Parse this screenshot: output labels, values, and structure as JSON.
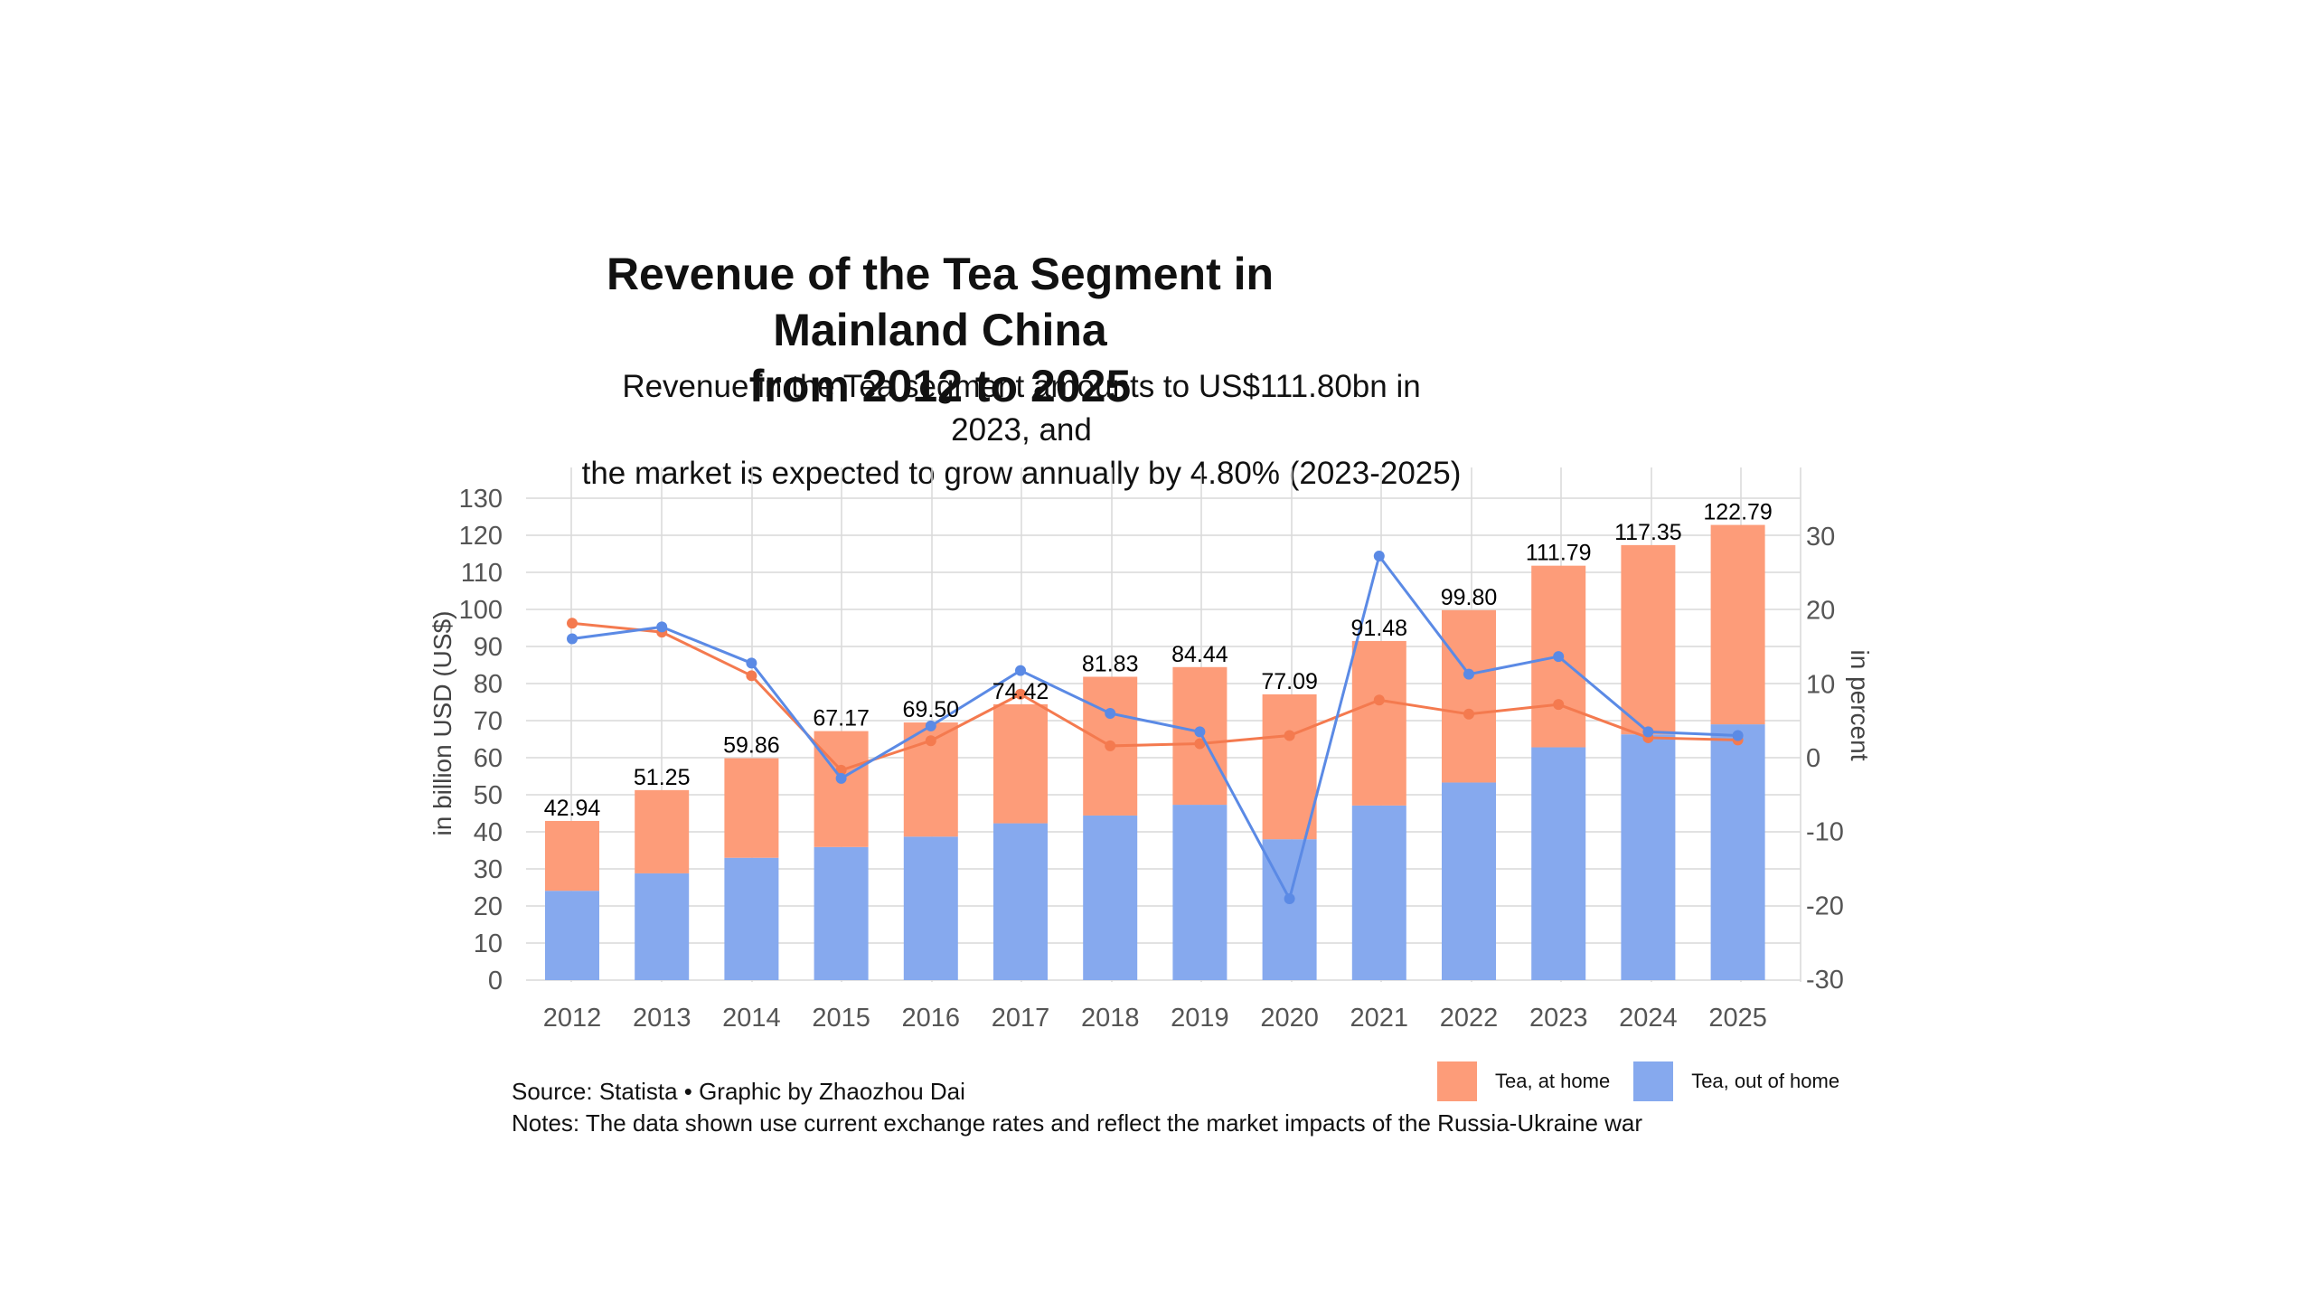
{
  "title_lines": [
    "Revenue of the Tea Segment in Mainland China",
    "from 2012 to 2025"
  ],
  "subtitle_lines": [
    "Revenue in the Tea segment amounts to US$111.80bn in 2023, and",
    "the market is expected to grow annually by 4.80% (2023-2025)"
  ],
  "source": "Source: Statista • Graphic by Zhaozhou Dai",
  "notes": "Notes: The data shown use current exchange rates and reflect the market impacts of the Russia-Ukraine war",
  "colors": {
    "at_home": "#fd9c79",
    "out_of_home": "#86a9ee",
    "at_home_line": "#f47a4f",
    "out_of_home_line": "#5b8ae5",
    "grid": "#d9d9d9"
  },
  "chart_data": {
    "type": "bar",
    "stacked": true,
    "categories": [
      "2012",
      "2013",
      "2014",
      "2015",
      "2016",
      "2017",
      "2018",
      "2019",
      "2020",
      "2021",
      "2022",
      "2023",
      "2024",
      "2025"
    ],
    "ylabel": "in billion USD (US$)",
    "y2label": "in percent",
    "ylim": [
      0,
      130
    ],
    "yticks": [
      0,
      10,
      20,
      30,
      40,
      50,
      60,
      70,
      80,
      90,
      100,
      110,
      120,
      130
    ],
    "y2lim": [
      -30,
      30
    ],
    "y2ticks": [
      30,
      20,
      10,
      0,
      -10,
      -20,
      -30
    ],
    "totals": [
      "42.94",
      "51.25",
      "59.86",
      "67.17",
      "69.50",
      "74.42",
      "81.83",
      "84.44",
      "77.09",
      "91.48",
      "99.80",
      "111.79",
      "117.35",
      "122.79"
    ],
    "series": [
      {
        "name": "Tea, out of home",
        "kind": "bar",
        "values": [
          24.1,
          28.8,
          33.0,
          35.9,
          38.7,
          42.3,
          44.4,
          47.3,
          38.0,
          47.1,
          53.3,
          62.8,
          66.3,
          69.0
        ]
      },
      {
        "name": "Tea, at home",
        "kind": "bar",
        "values": [
          18.84,
          22.45,
          26.86,
          31.27,
          30.8,
          32.12,
          37.43,
          37.14,
          39.09,
          44.38,
          46.5,
          48.99,
          51.05,
          53.79
        ]
      },
      {
        "name": "Tea, at home",
        "kind": "line",
        "axis": "right",
        "values": [
          18.2,
          17.0,
          11.1,
          -1.7,
          2.3,
          8.6,
          1.6,
          1.9,
          3.0,
          7.8,
          5.9,
          7.2,
          2.7,
          2.4
        ]
      },
      {
        "name": "Tea, out of home",
        "kind": "line",
        "axis": "right",
        "values": [
          16.1,
          17.7,
          12.8,
          -2.8,
          4.3,
          11.8,
          6.0,
          3.5,
          -19.1,
          27.3,
          11.3,
          13.7,
          3.5,
          3.0
        ]
      }
    ],
    "grid": true,
    "legend": {
      "position": "bottom-right",
      "entries": [
        "Tea, at home",
        "Tea, out of home"
      ]
    }
  }
}
